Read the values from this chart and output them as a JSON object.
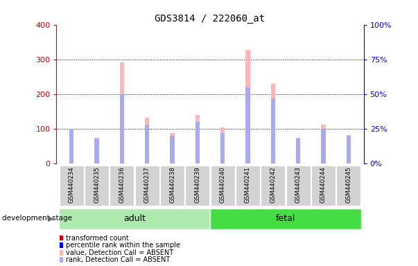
{
  "title": "GDS3814 / 222060_at",
  "samples": [
    "GSM440234",
    "GSM440235",
    "GSM440236",
    "GSM440237",
    "GSM440238",
    "GSM440239",
    "GSM440240",
    "GSM440241",
    "GSM440242",
    "GSM440243",
    "GSM440244",
    "GSM440245"
  ],
  "transformed_count": [
    100,
    75,
    293,
    133,
    88,
    140,
    105,
    328,
    230,
    75,
    113,
    83
  ],
  "percentile_rank": [
    25,
    18,
    50,
    28,
    20,
    30,
    22,
    55,
    47,
    18,
    25,
    20
  ],
  "groups": [
    {
      "label": "adult",
      "start": 0,
      "end": 6,
      "color": "#AEEAAE"
    },
    {
      "label": "fetal",
      "start": 6,
      "end": 12,
      "color": "#44DD44"
    }
  ],
  "group_label_prefix": "development stage",
  "left_ylim": [
    0,
    400
  ],
  "right_ylim": [
    0,
    100
  ],
  "left_yticks": [
    0,
    100,
    200,
    300,
    400
  ],
  "right_yticks": [
    0,
    25,
    50,
    75,
    100
  ],
  "right_yticklabels": [
    "0%",
    "25%",
    "50%",
    "75%",
    "100%"
  ],
  "left_axis_color": "#CC0000",
  "right_axis_color": "#0000CC",
  "bar_color_absent": "#FFB6B6",
  "rank_color_absent": "#AAAAEE",
  "legend_items": [
    {
      "label": "transformed count",
      "color": "#CC0000"
    },
    {
      "label": "percentile rank within the sample",
      "color": "#0000CC"
    },
    {
      "label": "value, Detection Call = ABSENT",
      "color": "#FFB6B6"
    },
    {
      "label": "rank, Detection Call = ABSENT",
      "color": "#AAAAEE"
    }
  ]
}
